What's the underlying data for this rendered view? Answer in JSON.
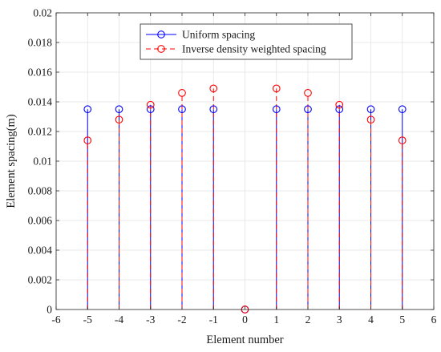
{
  "chart_data": {
    "type": "scatter",
    "subtype": "stem",
    "xlabel": "Element number",
    "ylabel": "Element spacing(m)",
    "xlim": [
      -6,
      6
    ],
    "ylim": [
      0,
      0.02
    ],
    "x_ticks": [
      -6,
      -5,
      -4,
      -3,
      -2,
      -1,
      0,
      1,
      2,
      3,
      4,
      5,
      6
    ],
    "y_ticks": [
      0,
      0.002,
      0.004,
      0.006,
      0.008,
      0.01,
      0.012,
      0.014,
      0.016,
      0.018,
      0.02
    ],
    "grid": true,
    "legend_position": "top-center",
    "x": [
      -5,
      -4,
      -3,
      -2,
      -1,
      0,
      1,
      2,
      3,
      4,
      5
    ],
    "series": [
      {
        "name": "Uniform spacing",
        "color": "#0000ff",
        "line_style": "solid",
        "marker": "circle",
        "values": [
          0.0135,
          0.0135,
          0.0135,
          0.0135,
          0.0135,
          0,
          0.0135,
          0.0135,
          0.0135,
          0.0135,
          0.0135
        ]
      },
      {
        "name": "Inverse density weighted spacing",
        "color": "#ff0000",
        "line_style": "dashed",
        "marker": "circle",
        "values": [
          0.0114,
          0.0128,
          0.0138,
          0.0146,
          0.0149,
          0,
          0.0149,
          0.0146,
          0.0138,
          0.0128,
          0.0114
        ]
      }
    ]
  }
}
